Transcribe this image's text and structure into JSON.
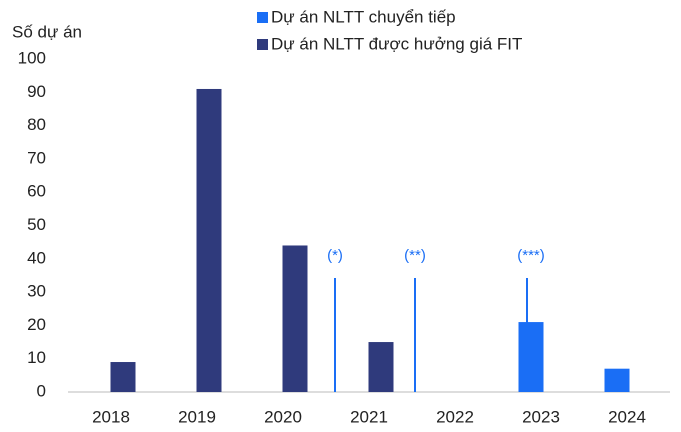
{
  "chart_data": {
    "type": "bar",
    "y_axis_label": "Số dự án",
    "categories": [
      "2018",
      "2019",
      "2020",
      "2021",
      "2022",
      "2023",
      "2024"
    ],
    "series": [
      {
        "name": "Dự án NLTT chuyển tiếp",
        "color": "#1a6ef5",
        "values": [
          null,
          null,
          null,
          null,
          null,
          21,
          7
        ]
      },
      {
        "name": "Dự án NLTT được hưởng giá FIT",
        "color": "#2f3a7c",
        "values": [
          9,
          91,
          44,
          15,
          null,
          null,
          null
        ]
      }
    ],
    "ylim": [
      0,
      100
    ],
    "yticks": [
      0,
      10,
      20,
      30,
      40,
      50,
      60,
      70,
      80,
      90,
      100
    ],
    "annotations": [
      "(*)",
      "(**)",
      "(***)"
    ]
  }
}
